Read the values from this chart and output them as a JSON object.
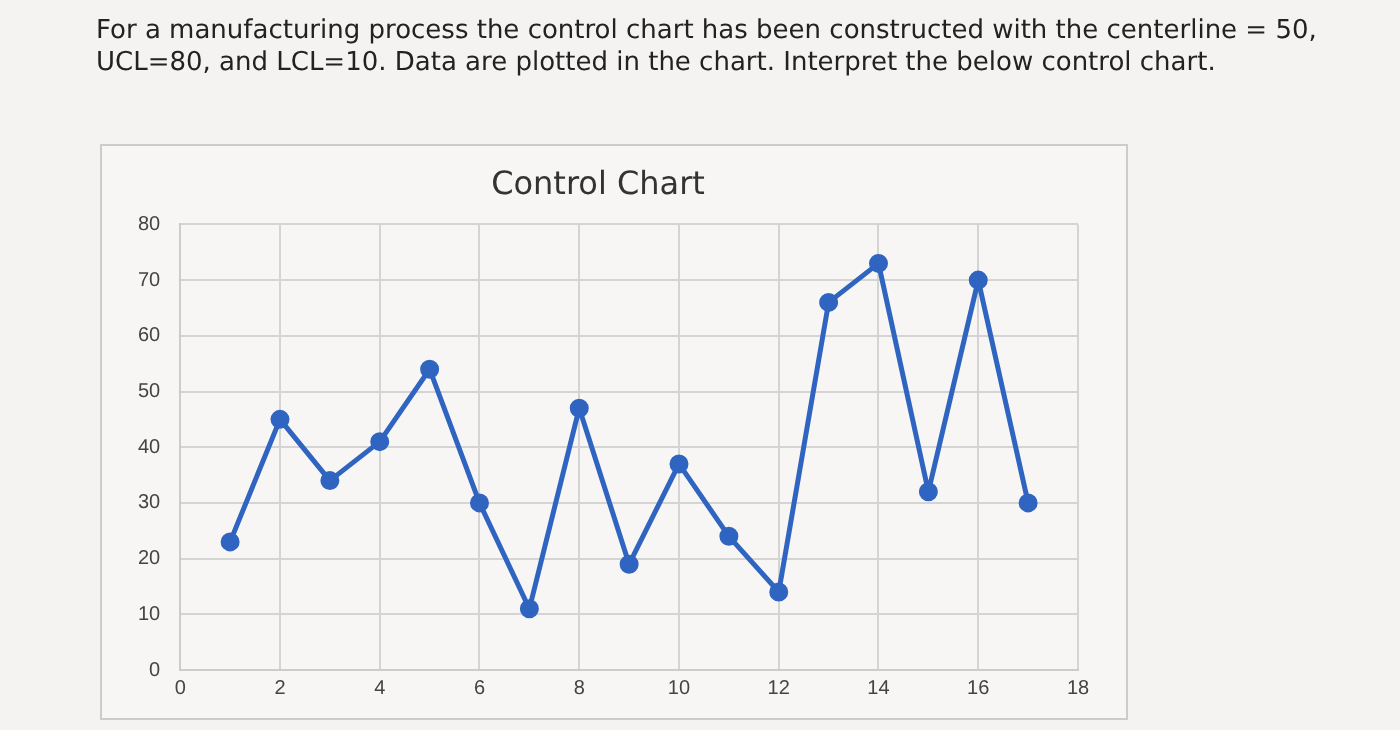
{
  "chart_data": {
    "type": "line",
    "title": "Control Chart",
    "annotations": [
      "For a manufacturing process the control chart has been constructed with the centerline = 50, UCL=80, and LCL=10. Data are plotted in the chart. Interpret the below control chart."
    ],
    "x": [
      1,
      2,
      3,
      4,
      5,
      6,
      7,
      8,
      9,
      10,
      11,
      12,
      13,
      14,
      15,
      16,
      17
    ],
    "series": [
      {
        "color": "#2f64c0",
        "values": [
          23,
          45,
          34,
          41,
          54,
          30,
          11,
          47,
          19,
          37,
          24,
          14,
          66,
          73,
          32,
          70,
          30
        ]
      }
    ],
    "xlim": [
      0,
      18
    ],
    "xticks": [
      0,
      2,
      4,
      6,
      8,
      10,
      12,
      14,
      16,
      18
    ],
    "ylim": [
      0,
      80
    ],
    "yticks": [
      0,
      10,
      20,
      30,
      40,
      50,
      60,
      70,
      80
    ],
    "grid": true,
    "legend": false,
    "marker": "circle",
    "line_style": "solid"
  }
}
